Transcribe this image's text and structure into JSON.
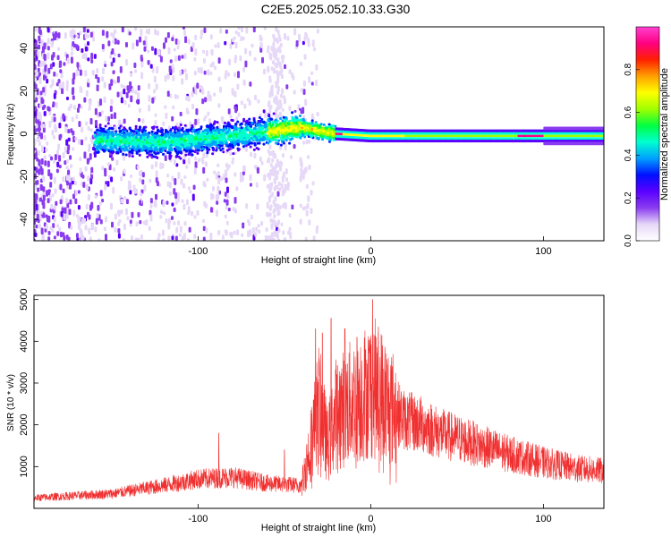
{
  "title": "C2E5.2025.052.10.33.G30",
  "chart_data": [
    {
      "type": "heatmap",
      "xlabel": "Height of straight line (km)",
      "ylabel": "Frequency (Hz)",
      "xlim": [
        -195,
        135
      ],
      "ylim": [
        -50,
        50
      ],
      "xticks": [
        -100,
        0,
        100
      ],
      "yticks": [
        -40,
        -20,
        0,
        20,
        40
      ],
      "colorbar": {
        "label": "Normalized spectral amplitude",
        "range": [
          0,
          1
        ],
        "ticks": [
          0.0,
          0.2,
          0.4,
          0.6,
          0.8
        ],
        "colors": [
          "#ffffff",
          "#e6d8f7",
          "#8a3cf0",
          "#5a00ff",
          "#0010ff",
          "#00a0ff",
          "#00ffd0",
          "#00ff40",
          "#a0ff00",
          "#ffff00",
          "#ffa000",
          "#ff2000",
          "#ff0080",
          "#ff40d0"
        ]
      },
      "ridge": {
        "description_points_km_hz": [
          [
            -160,
            -3
          ],
          [
            -120,
            -4
          ],
          [
            -80,
            -1
          ],
          [
            -40,
            3
          ],
          [
            -20,
            0
          ],
          [
            0,
            -1
          ],
          [
            50,
            -1
          ],
          [
            100,
            -1
          ],
          [
            135,
            -1
          ]
        ]
      }
    },
    {
      "type": "line",
      "xlabel": "Height of straight line (km)",
      "ylabel": "SNR (10 * v/v)",
      "xlim": [
        -195,
        135
      ],
      "ylim": [
        0,
        5100
      ],
      "xticks": [
        -100,
        0,
        100
      ],
      "yticks": [
        1000,
        2000,
        3000,
        4000,
        5000
      ],
      "color": "#f03030",
      "envelope_km_snr": [
        [
          -195,
          250
        ],
        [
          -150,
          350
        ],
        [
          -120,
          550
        ],
        [
          -100,
          700
        ],
        [
          -80,
          750
        ],
        [
          -60,
          600
        ],
        [
          -40,
          550
        ],
        [
          -35,
          1500
        ],
        [
          -30,
          2500
        ],
        [
          -25,
          1500
        ],
        [
          -20,
          2300
        ],
        [
          -15,
          2400
        ],
        [
          -10,
          2600
        ],
        [
          -5,
          2700
        ],
        [
          0,
          2900
        ],
        [
          5,
          2800
        ],
        [
          10,
          2500
        ],
        [
          20,
          2100
        ],
        [
          30,
          2000
        ],
        [
          40,
          1800
        ],
        [
          60,
          1550
        ],
        [
          80,
          1300
        ],
        [
          100,
          1100
        ],
        [
          120,
          950
        ],
        [
          135,
          900
        ]
      ],
      "spikes_km_snr": [
        [
          -32,
          4300
        ],
        [
          -28,
          4200
        ],
        [
          -23,
          4550
        ],
        [
          -15,
          4300
        ],
        [
          -8,
          4100
        ],
        [
          -3,
          3800
        ],
        [
          1,
          5000
        ],
        [
          -88,
          1800
        ],
        [
          -50,
          1400
        ],
        [
          28,
          2300
        ]
      ]
    }
  ]
}
